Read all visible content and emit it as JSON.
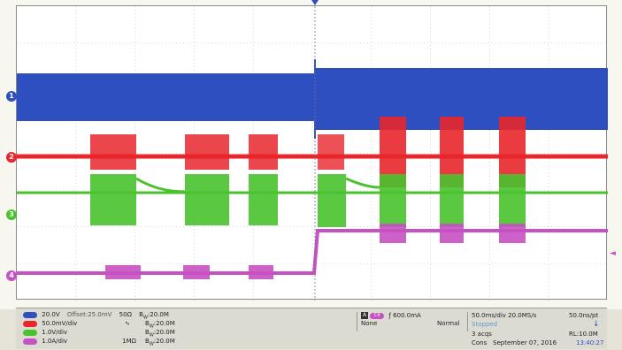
{
  "channels": [
    {
      "id": "ch1",
      "badge": "1",
      "color": "#2e4fbf",
      "scale": "20.0V",
      "offset": "Offset:25.0mV",
      "coupling": "50Ω",
      "bw": "20.0M"
    },
    {
      "id": "ch2",
      "badge": "2",
      "color": "#e8262b",
      "scale": "50.0mV/div",
      "offset": "",
      "coupling": "",
      "bw": "20.0M"
    },
    {
      "id": "ch3",
      "badge": "3",
      "color": "#49c22d",
      "scale": "1.0V/div",
      "offset": "",
      "coupling": "",
      "bw": "20.0M"
    },
    {
      "id": "ch4",
      "badge": "4",
      "color": "#c651c2",
      "scale": "1.0A/div",
      "offset": "",
      "coupling": "1MΩ",
      "bw": "20.0M"
    }
  ],
  "bw_prefix": "B",
  "trigger": {
    "source": "A",
    "channel": "C4",
    "level": "600.0mA",
    "mode1": "None",
    "mode2": "Normal"
  },
  "timebase": {
    "rate": "50.0ms/div 20.0MS/s",
    "pt": "50.0ns/pt",
    "state": "Stopped",
    "acqs": "3 acqs",
    "rl": "RL:10.0M",
    "corr": "Cons",
    "date": "September 07, 2016",
    "time": "13:40:27"
  },
  "colors": {
    "grid": "#b9b9b9",
    "background": "#ffffff",
    "trigger_marker": "#2e4fbf"
  },
  "markers": {
    "trigger_right": "◄"
  }
}
